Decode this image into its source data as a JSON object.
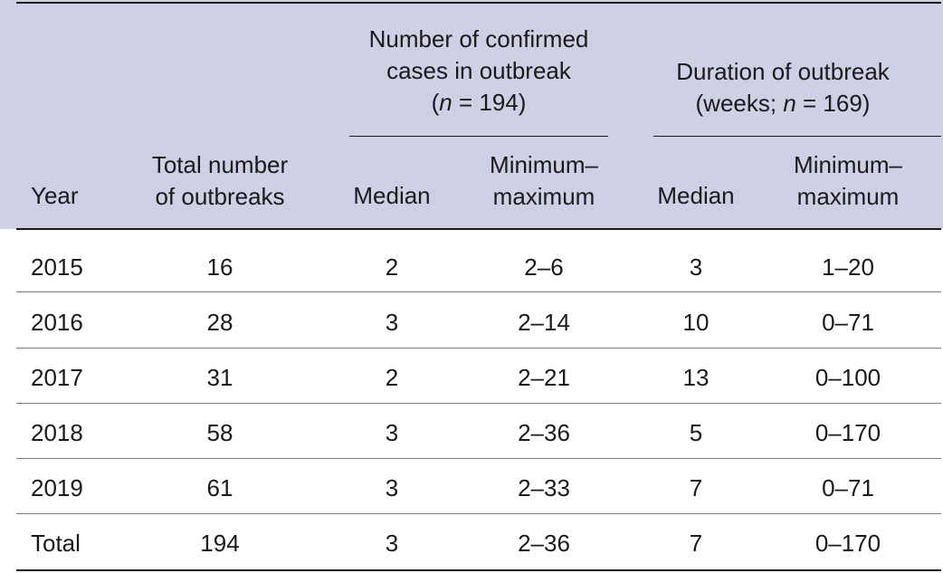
{
  "table": {
    "group_cases": {
      "line1": "Number of confirmed",
      "line2": "cases in outbreak",
      "line3": "(n = 194)"
    },
    "group_duration": {
      "line1": "Duration of outbreak",
      "line2": "(weeks; n = 169)"
    },
    "headers": {
      "year": "Year",
      "total_line1": "Total number",
      "total_line2": "of outbreaks",
      "cases_median": "Median",
      "cases_range_line1": "Minimum–",
      "cases_range_line2": "maximum",
      "duration_median": "Median",
      "duration_range_line1": "Minimum–",
      "duration_range_line2": "maximum"
    },
    "rows": [
      {
        "year": "2015",
        "total": "16",
        "cases_median": "2",
        "cases_range": "2–6",
        "duration_median": "3",
        "duration_range": "1–20"
      },
      {
        "year": "2016",
        "total": "28",
        "cases_median": "3",
        "cases_range": "2–14",
        "duration_median": "10",
        "duration_range": "0–71"
      },
      {
        "year": "2017",
        "total": "31",
        "cases_median": "2",
        "cases_range": "2–21",
        "duration_median": "13",
        "duration_range": "0–100"
      },
      {
        "year": "2018",
        "total": "58",
        "cases_median": "3",
        "cases_range": "2–36",
        "duration_median": "5",
        "duration_range": "0–170"
      },
      {
        "year": "2019",
        "total": "61",
        "cases_median": "3",
        "cases_range": "2–33",
        "duration_median": "7",
        "duration_range": "0–71"
      },
      {
        "year": "Total",
        "total": "194",
        "cases_median": "3",
        "cases_range": "2–36",
        "duration_median": "7",
        "duration_range": "0–170"
      }
    ],
    "colors": {
      "header_background": "#cfcfe6",
      "text": "#1a1a1a"
    }
  }
}
